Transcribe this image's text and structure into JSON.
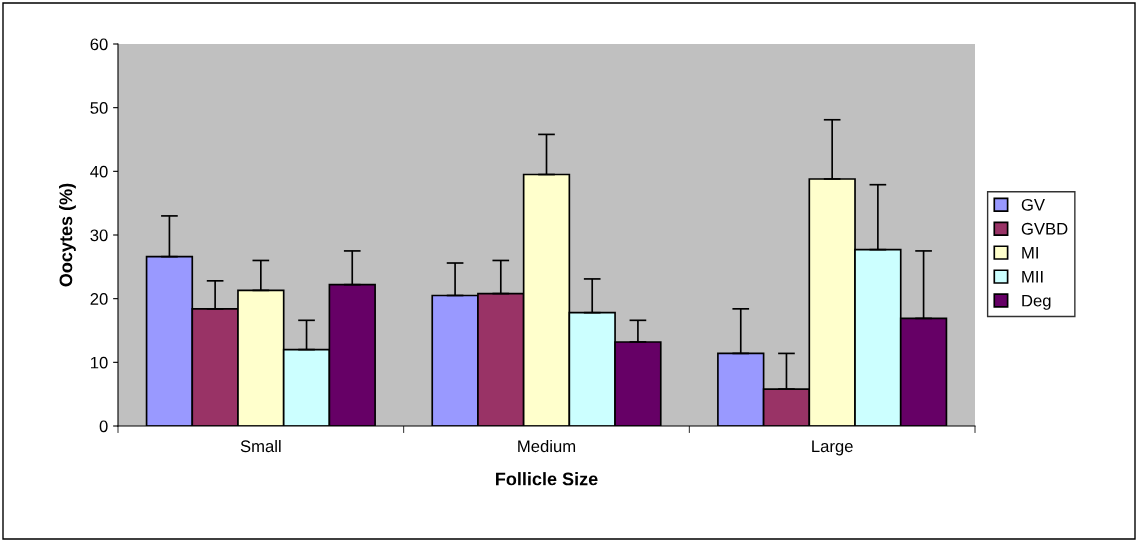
{
  "chart_data": {
    "type": "bar",
    "xlabel": "Follicle Size",
    "ylabel": "Oocytes (%)",
    "categories": [
      "Small",
      "Medium",
      "Large"
    ],
    "series": [
      {
        "name": "GV",
        "color": "#9999ff",
        "values": [
          26.6,
          20.5,
          11.4
        ],
        "errors": [
          [
            26.6,
            33.0
          ],
          [
            20.5,
            25.6
          ],
          [
            11.4,
            18.4
          ]
        ]
      },
      {
        "name": "GVBD",
        "color": "#993366",
        "values": [
          18.4,
          20.8,
          5.8
        ],
        "errors": [
          [
            18.4,
            22.8
          ],
          [
            20.8,
            26.0
          ],
          [
            5.8,
            11.4
          ]
        ]
      },
      {
        "name": "MI",
        "color": "#ffffcc",
        "values": [
          21.3,
          39.5,
          38.8
        ],
        "errors": [
          [
            21.3,
            26.0
          ],
          [
            39.5,
            45.8
          ],
          [
            38.8,
            48.1
          ]
        ]
      },
      {
        "name": "MII",
        "color": "#ccffff",
        "values": [
          12.0,
          17.8,
          27.7
        ],
        "errors": [
          [
            12.0,
            16.6
          ],
          [
            17.8,
            23.1
          ],
          [
            27.7,
            37.9
          ]
        ]
      },
      {
        "name": "Deg",
        "color": "#660066",
        "values": [
          22.2,
          13.2,
          16.9
        ],
        "errors": [
          [
            22.2,
            27.5
          ],
          [
            13.2,
            16.6
          ],
          [
            16.9,
            27.5
          ]
        ]
      }
    ],
    "ylim": [
      0,
      60
    ],
    "yticks": [
      0,
      10,
      20,
      30,
      40,
      50,
      60
    ],
    "grid": false,
    "legend": "right"
  }
}
